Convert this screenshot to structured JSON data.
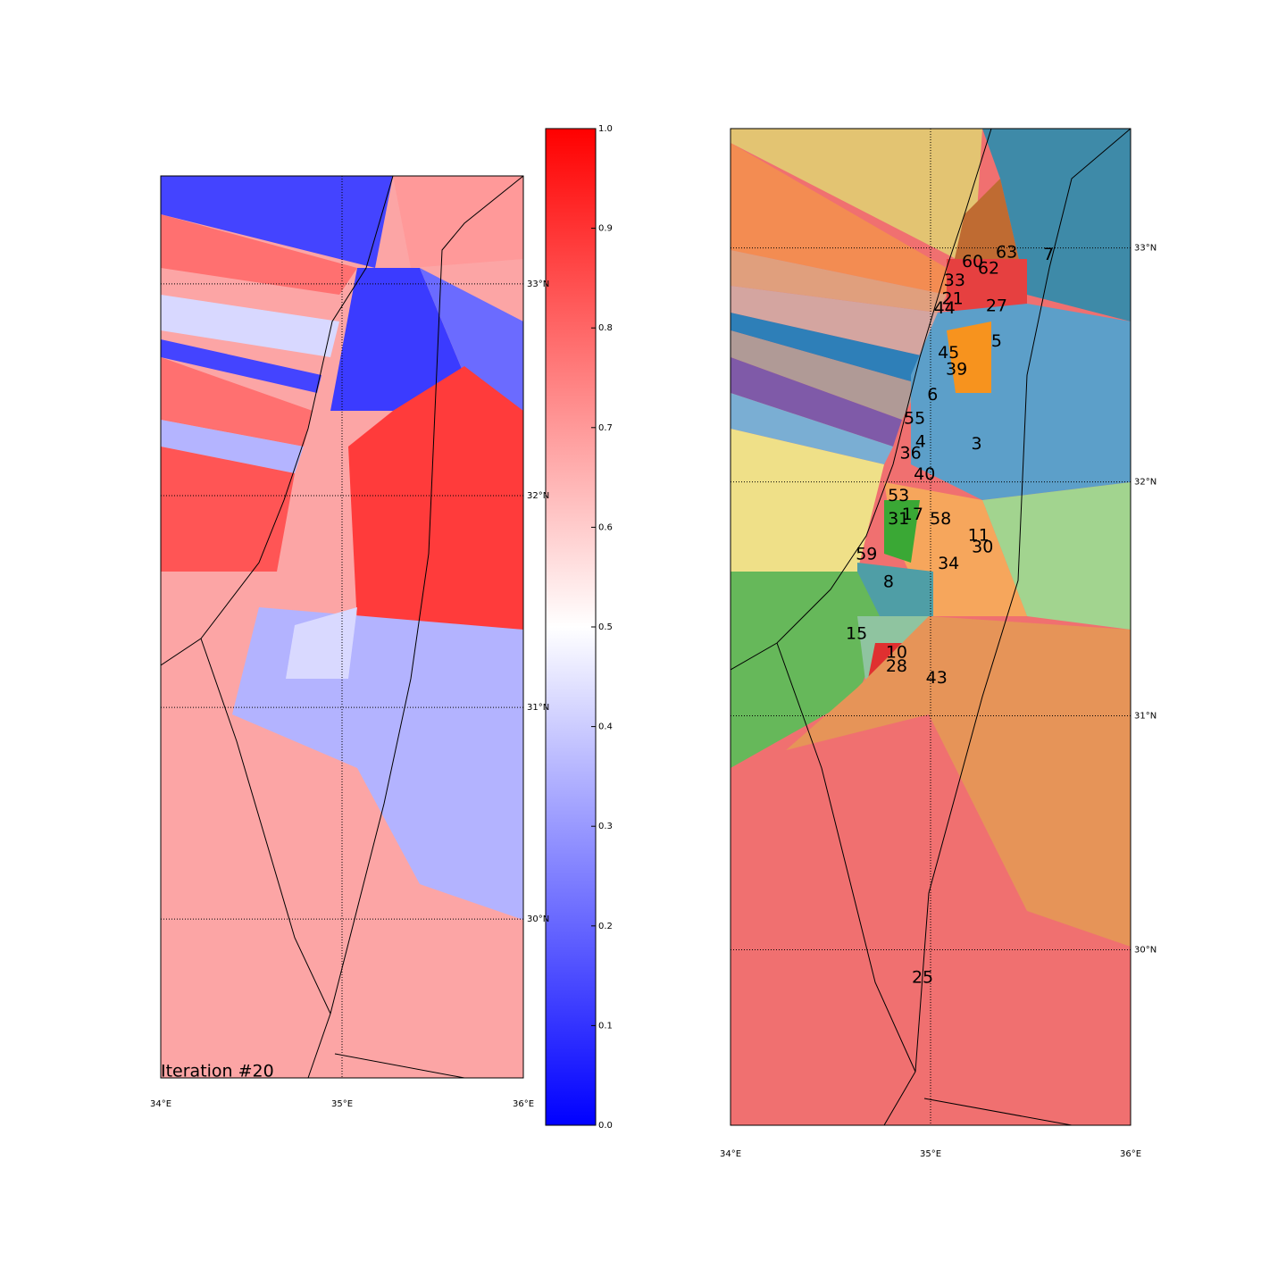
{
  "left_map": {
    "annotation": "Iteration #20",
    "xlim": [
      34,
      36
    ],
    "ylim": [
      29.25,
      33.51
    ],
    "xticks": [
      {
        "value": 34,
        "label": "34°E"
      },
      {
        "value": 35,
        "label": "35°E"
      },
      {
        "value": 36,
        "label": "36°E"
      }
    ],
    "yticks": [
      {
        "value": 33,
        "label": "33°N"
      },
      {
        "value": 32,
        "label": "32°N"
      },
      {
        "value": 31,
        "label": "31°N"
      },
      {
        "value": 30,
        "label": "30°N"
      }
    ]
  },
  "colorbar": {
    "lim": [
      0,
      1
    ],
    "ticks": [
      {
        "value": 0,
        "label": "0.0"
      },
      {
        "value": 0.1,
        "label": "0.1"
      },
      {
        "value": 0.2,
        "label": "0.2"
      },
      {
        "value": 0.3,
        "label": "0.3"
      },
      {
        "value": 0.4,
        "label": "0.4"
      },
      {
        "value": 0.5,
        "label": "0.5"
      },
      {
        "value": 0.6,
        "label": "0.6"
      },
      {
        "value": 0.7,
        "label": "0.7"
      },
      {
        "value": 0.8,
        "label": "0.8"
      },
      {
        "value": 0.9,
        "label": "0.9"
      },
      {
        "value": 1,
        "label": "1.0"
      }
    ]
  },
  "right_map": {
    "xlim": [
      34,
      36
    ],
    "ylim": [
      29.25,
      33.51
    ],
    "xticks": [
      {
        "value": 34,
        "label": "34°E"
      },
      {
        "value": 35,
        "label": "35°E"
      },
      {
        "value": 36,
        "label": "36°E"
      }
    ],
    "yticks": [
      {
        "value": 33,
        "label": "33°N"
      },
      {
        "value": 32,
        "label": "32°N"
      },
      {
        "value": 31,
        "label": "31°N"
      },
      {
        "value": 30,
        "label": "30°N"
      }
    ],
    "regions": [
      {
        "label": "7",
        "lon": 35.59,
        "lat": 32.97
      },
      {
        "label": "63",
        "lon": 35.38,
        "lat": 32.98
      },
      {
        "label": "60",
        "lon": 35.21,
        "lat": 32.94
      },
      {
        "label": "62",
        "lon": 35.29,
        "lat": 32.91
      },
      {
        "label": "33",
        "lon": 35.12,
        "lat": 32.86
      },
      {
        "label": "21",
        "lon": 35.11,
        "lat": 32.78
      },
      {
        "label": "27",
        "lon": 35.33,
        "lat": 32.75
      },
      {
        "label": "44",
        "lon": 35.07,
        "lat": 32.74
      },
      {
        "label": "5",
        "lon": 35.33,
        "lat": 32.6
      },
      {
        "label": "45",
        "lon": 35.09,
        "lat": 32.55
      },
      {
        "label": "39",
        "lon": 35.13,
        "lat": 32.48
      },
      {
        "label": "6",
        "lon": 35.01,
        "lat": 32.37
      },
      {
        "label": "55",
        "lon": 34.92,
        "lat": 32.27
      },
      {
        "label": "3",
        "lon": 35.23,
        "lat": 32.16
      },
      {
        "label": "4",
        "lon": 34.95,
        "lat": 32.17
      },
      {
        "label": "36",
        "lon": 34.9,
        "lat": 32.12
      },
      {
        "label": "40",
        "lon": 34.97,
        "lat": 32.03
      },
      {
        "label": "53",
        "lon": 34.84,
        "lat": 31.94
      },
      {
        "label": "17",
        "lon": 34.91,
        "lat": 31.86
      },
      {
        "label": "58",
        "lon": 35.05,
        "lat": 31.84
      },
      {
        "label": "31",
        "lon": 34.84,
        "lat": 31.84
      },
      {
        "label": "11",
        "lon": 35.24,
        "lat": 31.77
      },
      {
        "label": "30",
        "lon": 35.26,
        "lat": 31.72
      },
      {
        "label": "34",
        "lon": 35.09,
        "lat": 31.65
      },
      {
        "label": "59",
        "lon": 34.68,
        "lat": 31.69
      },
      {
        "label": "8",
        "lon": 34.79,
        "lat": 31.57
      },
      {
        "label": "15",
        "lon": 34.63,
        "lat": 31.35
      },
      {
        "label": "10",
        "lon": 34.83,
        "lat": 31.27
      },
      {
        "label": "28",
        "lon": 34.83,
        "lat": 31.21
      },
      {
        "label": "43",
        "lon": 35.03,
        "lat": 31.16
      },
      {
        "label": "25",
        "lon": 34.96,
        "lat": 29.88
      }
    ]
  }
}
